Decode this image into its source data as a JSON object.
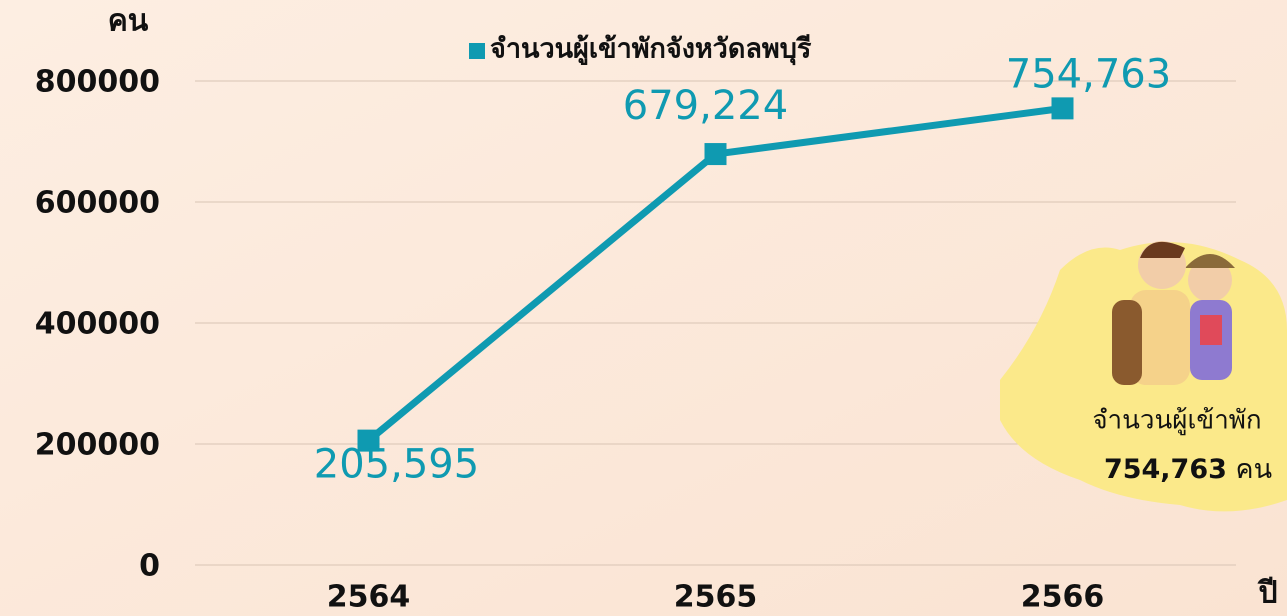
{
  "chart_data": {
    "type": "line",
    "y_axis_label": "คน",
    "x_axis_label": "ปี",
    "categories": [
      "2564",
      "2565",
      "2566"
    ],
    "series": [
      {
        "name": "จำนวนผู้เข้าพักจังหวัดลพบุรี",
        "color": "#0f9ab1",
        "values": [
          205595,
          679224,
          754763
        ],
        "value_labels": [
          "205,595",
          "679,224",
          "754,763"
        ]
      }
    ],
    "ylim": [
      0,
      800000
    ],
    "yticks": [
      0,
      200000,
      400000,
      600000,
      800000
    ],
    "grid": true,
    "annotation": {
      "text": "จำนวนผู้เข้าพัก",
      "value_label": "754,763",
      "unit": "คน"
    }
  }
}
